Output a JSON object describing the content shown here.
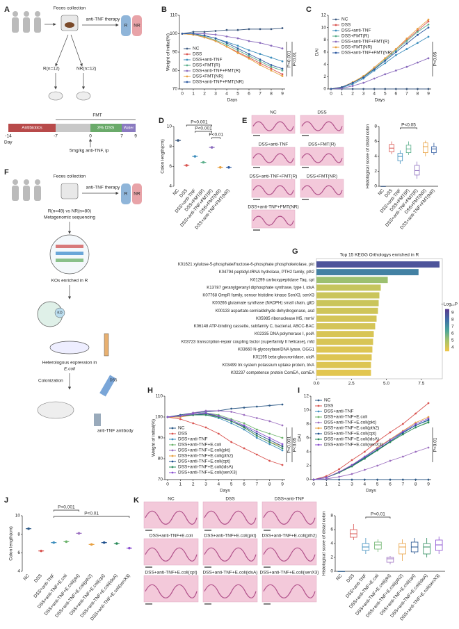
{
  "panel_a": {
    "panel": "A",
    "feces": "Feces collection",
    "therapy": "anti-TNF therapy",
    "r": "R",
    "nr": "NR",
    "r_n": "R(n=12)",
    "nr_n": "NR(n=12)",
    "fmt": "FMT",
    "antibiotics": "Antibiotics",
    "dss": "3% DSS",
    "water": "Water",
    "days": [
      "-14",
      "-7",
      "0",
      "7",
      "9"
    ],
    "day": "Day",
    "dose": "5mg/kg anti-TNF, ip"
  },
  "panel_f": {
    "panel": "F",
    "feces": "Feces collection",
    "therapy": "anti-TNF therapy",
    "r": "R",
    "nr": "NR",
    "cohort": "R(n=49) vs NR(n=80)",
    "sequencing": "Metagenomic sequencing",
    "kos": "KOs enriched in R",
    "ko": "KO",
    "expression": "Heterologous expression in",
    "ecoli": "E.coli",
    "colonization": "Colonization",
    "dss": "DSS",
    "antibody": "anti-TNF antibody"
  },
  "histology_e": {
    "panel": "E",
    "labels": [
      "NC",
      "DSS",
      "DSS+anti-TNF",
      "DSS+FMT(R)",
      "DSS+anti-TNF+FMT(R)",
      "DSS+FMT(NR)",
      "DSS+anti-TNF+FMT(NR)"
    ]
  },
  "histology_k": {
    "panel": "K",
    "labels": [
      "NC",
      "DSS",
      "DSS+anti-TNF",
      "DSS+anti-TNF+E.coli",
      "DSS+anti-TNF+E.coli(pkt)",
      "DSS+anti-TNF+E.coli(pth2)",
      "DSS+anti-TNF+E.coli(cpt)",
      "DSS+anti-TNF+E.coli(idsA)",
      "DSS+anti-TNF+E.coli(senX3)"
    ]
  },
  "chart_data": [
    {
      "type": "line",
      "panel": "B",
      "y_label": "Weight of initial(%)",
      "x_label": "Days",
      "x": [
        0,
        1,
        2,
        3,
        4,
        5,
        6,
        7,
        8,
        9
      ],
      "xlim": [
        0,
        9
      ],
      "xticks": [
        0,
        1,
        2,
        3,
        4,
        5,
        6,
        7,
        8,
        9
      ],
      "ylim": [
        70,
        110
      ],
      "yticks": [
        70,
        80,
        90,
        100,
        110
      ],
      "legend": "lower left",
      "annotations": [
        "P<0.001",
        "P<0.01"
      ],
      "series": [
        {
          "name": "NC",
          "color": "#3d5a80",
          "values": [
            100,
            101,
            101,
            101.5,
            102,
            102,
            102.5,
            102.5,
            102.5,
            103
          ]
        },
        {
          "name": "DSS",
          "color": "#d9534f",
          "values": [
            100,
            99.5,
            98,
            96,
            93,
            90,
            87,
            84,
            81,
            78
          ]
        },
        {
          "name": "DSS+anti-TNF",
          "color": "#3c8dbc",
          "values": [
            100,
            100,
            99,
            97.5,
            95.5,
            93.5,
            91,
            89,
            87,
            85
          ]
        },
        {
          "name": "DSS+FMT(R)",
          "color": "#5aae8a",
          "values": [
            100,
            99.5,
            98.5,
            96.5,
            94,
            91,
            88,
            85,
            82,
            80
          ]
        },
        {
          "name": "DSS+anti-TNF+FMT(R)",
          "color": "#8a6bbd",
          "values": [
            100,
            100,
            100,
            99.5,
            98.5,
            97.5,
            96,
            95,
            93.5,
            92
          ]
        },
        {
          "name": "DSS+FMT(NR)",
          "color": "#e8a040",
          "values": [
            100,
            99.5,
            98,
            96,
            93,
            89.5,
            86.5,
            83,
            80,
            77
          ]
        },
        {
          "name": "DSS+anti-TNF+FMT(NR)",
          "color": "#2e5aa0",
          "values": [
            100,
            100,
            99,
            97.5,
            95,
            92,
            89,
            86,
            83,
            81
          ]
        }
      ]
    },
    {
      "type": "line",
      "panel": "C",
      "y_label": "DAI",
      "x_label": "Days",
      "x": [
        0,
        1,
        2,
        3,
        4,
        5,
        6,
        7,
        8,
        9
      ],
      "xlim": [
        0,
        9
      ],
      "xticks": [
        0,
        1,
        2,
        3,
        4,
        5,
        6,
        7,
        8,
        9
      ],
      "ylim": [
        0,
        12
      ],
      "yticks": [
        0,
        2,
        4,
        6,
        8,
        10,
        12
      ],
      "legend": "upper left",
      "annotations": [
        "P<0.05"
      ],
      "series": [
        {
          "name": "NC",
          "color": "#3d5a80",
          "values": [
            0,
            0,
            0,
            0,
            0,
            0,
            0,
            0,
            0,
            0
          ]
        },
        {
          "name": "DSS",
          "color": "#d9534f",
          "values": [
            0,
            0.3,
            1,
            2,
            3.5,
            5,
            6.5,
            8,
            9.5,
            11
          ]
        },
        {
          "name": "DSS+anti-TNF",
          "color": "#3c8dbc",
          "values": [
            0,
            0.2,
            0.8,
            1.7,
            3,
            4.2,
            5.5,
            6.5,
            7.5,
            8.5
          ]
        },
        {
          "name": "DSS+FMT(R)",
          "color": "#5aae8a",
          "values": [
            0,
            0.3,
            1,
            2,
            3.3,
            4.8,
            6.3,
            7.8,
            9.3,
            10.5
          ]
        },
        {
          "name": "DSS+anti-TNF+FMT(R)",
          "color": "#8a6bbd",
          "values": [
            0,
            0.1,
            0.5,
            1,
            1.7,
            2.4,
            3,
            3.6,
            4.3,
            5
          ]
        },
        {
          "name": "DSS+FMT(NR)",
          "color": "#e8a040",
          "values": [
            0,
            0.3,
            1.1,
            2.1,
            3.5,
            5,
            6.5,
            8.2,
            9.8,
            11.3
          ]
        },
        {
          "name": "DSS+anti-TNF+FMT(NR)",
          "color": "#2e5aa0",
          "values": [
            0,
            0.3,
            1,
            1.9,
            3.2,
            4.6,
            6,
            7.4,
            8.8,
            10
          ]
        }
      ]
    },
    {
      "type": "dot",
      "panel": "D",
      "y_label": "Colon length(cm)",
      "ylim": [
        4,
        10
      ],
      "yticks": [
        4,
        6,
        8,
        10
      ],
      "categories": [
        "NC",
        "DSS",
        "DSS+anti-TNF",
        "DSS+FMT(R)",
        "DSS+anti-TNF+FMT(R)",
        "DSS+FMT(NR)",
        "DSS+anti-TNF+FMT(NR)"
      ],
      "values": [
        8.6,
        6.1,
        7.0,
        6.4,
        7.9,
        5.9,
        5.9
      ],
      "colors": [
        "#3d5a80",
        "#d9534f",
        "#3c8dbc",
        "#5aae8a",
        "#8a6bbd",
        "#e8a040",
        "#2e5aa0"
      ],
      "annotations": [
        "P<0.001",
        "P<0.001",
        "P<0.01"
      ]
    },
    {
      "type": "box",
      "panel": "",
      "y_label": "Histological score of distal colon",
      "ylim": [
        0,
        8
      ],
      "yticks": [
        0,
        2,
        4,
        6,
        8
      ],
      "categories": [
        "NC",
        "DSS",
        "DSS+anti-TNF",
        "DSS+FMT(R)",
        "DSS+anti-TNF+FMT(R)",
        "DSS+FMT(NR)",
        "DSS+anti-TNF+FMT(NR)"
      ],
      "min": [
        0,
        4.3,
        3,
        4.2,
        1,
        4,
        4.2
      ],
      "q1": [
        0,
        4.6,
        3.4,
        4.5,
        1.5,
        4.5,
        4.5
      ],
      "median": [
        0,
        5.1,
        4,
        5,
        2.1,
        5.3,
        5
      ],
      "q3": [
        0,
        5.6,
        4.4,
        5.5,
        2.8,
        5.8,
        5.3
      ],
      "max": [
        0,
        6,
        4.8,
        6,
        3.3,
        6.1,
        5.8
      ],
      "colors": [
        "#3d5a80",
        "#d9534f",
        "#3c8dbc",
        "#5aae8a",
        "#8a6bbd",
        "#e8a040",
        "#2e5aa0"
      ],
      "annotations": [
        "P<0.05"
      ]
    },
    {
      "type": "hbar",
      "panel": "G",
      "title": "Top 15 KEGG Orthologys enriched in R",
      "categories": [
        "K01621 xylulose-5-phosphate/fructose-6-phosphate phosphoketolase, pkt",
        "K04794 peptidyl-tRNA hydrolase, PTH2 family, pth2",
        "K01299 carboxypeptidase Taq, cpt",
        "K13787 geranylgeranyl diphosphate synthase, type I, idsA",
        "K07768 OmpR family, sensor histidine kinase SenX3, senX3",
        "K00266 glutamate synthase (NADPH) small chain, gltD",
        "K00133 aspartate-semialdehyde dehydrogenase, asd",
        "K05985 ribonuclease M5, rnmV",
        "K06148 ATP-binding cassette, subfamily C, bacterial, ABCC-BAC",
        "K02335 DNA polymerase I, polA",
        "K03723 transcription-repair coupling factor (superfamily II helicase), mfd",
        "K03660 N-glycosylase/DNA lyase, OGG1",
        "K01195 beta-glucuronidase, uidA",
        "K03499 trk system potassium uptake protein, trkA",
        "K02237 competence protein ComEA, comEA"
      ],
      "values": [
        8.8,
        7.3,
        5.1,
        4.6,
        4.5,
        4.45,
        4.4,
        4.3,
        4.2,
        4.1,
        4.05,
        4.0,
        3.95,
        3.9,
        3.9
      ],
      "pvalues": [
        8.8,
        7.5,
        5.2,
        4.4,
        4.3,
        4.3,
        4.2,
        4.1,
        4.1,
        4.0,
        4.0,
        3.9,
        3.9,
        3.9,
        3.8
      ],
      "xlim": [
        0,
        9
      ],
      "xticks": [
        {
          "value": 0,
          "label": "0.0"
        },
        {
          "value": 2.5,
          "label": "2.5"
        },
        {
          "value": 5,
          "label": "5.0"
        },
        {
          "value": 7.5,
          "label": "7.5"
        }
      ],
      "color_label": "−Log₁₀P",
      "clim": [
        3.5,
        9.5
      ],
      "cticks": [
        4,
        5,
        6,
        7,
        8,
        9
      ],
      "colorscale": [
        "#f0c64a",
        "#a9c46a",
        "#4aa59a",
        "#3f6fa8",
        "#5b3d8f"
      ]
    },
    {
      "type": "line",
      "panel": "H",
      "y_label": "Weight of initial(%)",
      "x_label": "Days",
      "x": [
        0,
        1,
        2,
        3,
        4,
        5,
        6,
        7,
        8,
        9
      ],
      "xlim": [
        0,
        9
      ],
      "xticks": [
        0,
        1,
        2,
        3,
        4,
        5,
        6,
        7,
        8,
        9
      ],
      "ylim": [
        70,
        110
      ],
      "yticks": [
        70,
        80,
        90,
        100,
        110
      ],
      "legend": "lower left",
      "annotations": [
        "P<0.001",
        "P<0.05"
      ],
      "series": [
        {
          "name": "NC",
          "color": "#2e5a87",
          "values": [
            100,
            101,
            102,
            102.5,
            103,
            104,
            104.5,
            105,
            105.5,
            106
          ]
        },
        {
          "name": "DSS",
          "color": "#d9534f",
          "values": [
            100,
            99,
            97,
            95,
            92,
            88,
            85,
            82,
            79,
            77
          ]
        },
        {
          "name": "DSS+anti-TNF",
          "color": "#3c8dbc",
          "values": [
            100,
            100.5,
            101,
            101,
            99.5,
            97,
            94,
            90,
            87,
            84
          ]
        },
        {
          "name": "DSS+anti-TNF+E.coli",
          "color": "#6cb36c",
          "values": [
            100,
            100.5,
            101.5,
            102,
            101,
            99,
            97,
            94,
            92,
            90
          ]
        },
        {
          "name": "DSS+anti-TNF+E.coli(pkt)",
          "color": "#9c6fc0",
          "values": [
            100,
            100.5,
            102,
            103,
            103,
            102.5,
            101,
            99.5,
            98,
            96
          ]
        },
        {
          "name": "DSS+anti-TNF+E.coli(pth2)",
          "color": "#e8a040",
          "values": [
            100,
            100,
            101,
            101.5,
            100,
            98,
            95,
            91,
            88,
            86
          ]
        },
        {
          "name": "DSS+anti-TNF+E.coli(cpt)",
          "color": "#1e4f8c",
          "values": [
            100,
            100.5,
            101,
            101.5,
            100.5,
            98,
            95.5,
            92,
            89,
            86
          ]
        },
        {
          "name": "DSS+anti-TNF+E.coli(idsA)",
          "color": "#2a8a5a",
          "values": [
            100,
            100.5,
            101,
            101,
            100,
            98,
            95,
            91,
            88,
            85
          ]
        },
        {
          "name": "DSS+anti-TNF+E.coli(senX3)",
          "color": "#8a4fd0",
          "values": [
            100,
            100.5,
            101.5,
            102,
            100.5,
            98.5,
            96,
            93,
            90,
            87
          ]
        }
      ]
    },
    {
      "type": "line",
      "panel": "I",
      "y_label": "DAI",
      "x_label": "Days",
      "x": [
        0,
        1,
        2,
        3,
        4,
        5,
        6,
        7,
        8,
        9
      ],
      "xlim": [
        0,
        9
      ],
      "xticks": [
        0,
        1,
        2,
        3,
        4,
        5,
        6,
        7,
        8,
        9
      ],
      "ylim": [
        0,
        12
      ],
      "yticks": [
        0,
        2,
        4,
        6,
        8,
        10,
        12
      ],
      "legend": "upper left",
      "annotations": [
        "P<0.01"
      ],
      "series": [
        {
          "name": "NC",
          "color": "#2e5a87",
          "values": [
            0,
            0,
            0,
            0,
            0,
            0,
            0,
            0,
            0,
            0
          ]
        },
        {
          "name": "DSS",
          "color": "#d9534f",
          "values": [
            0,
            0.5,
            1.5,
            2.8,
            4,
            5.5,
            6.8,
            8,
            9.5,
            11
          ]
        },
        {
          "name": "DSS+anti-TNF",
          "color": "#3c8dbc",
          "values": [
            0,
            0.3,
            1,
            2,
            3.2,
            4.5,
            5.7,
            6.8,
            7.8,
            8.5
          ]
        },
        {
          "name": "DSS+anti-TNF+E.coli",
          "color": "#6cb36c",
          "values": [
            0,
            0.3,
            1,
            1.9,
            3,
            4.2,
            5.4,
            6.5,
            7.5,
            8.3
          ]
        },
        {
          "name": "DSS+anti-TNF+E.coli(pkt)",
          "color": "#9c6fc0",
          "values": [
            0,
            0.1,
            0.4,
            0.8,
            1.4,
            2,
            2.7,
            3.3,
            4,
            4.6
          ]
        },
        {
          "name": "DSS+anti-TNF+E.coli(pth2)",
          "color": "#e8a040",
          "values": [
            0,
            0.3,
            1.1,
            2.1,
            3.3,
            4.6,
            5.8,
            7,
            8.2,
            9
          ]
        },
        {
          "name": "DSS+anti-TNF+E.coli(cpt)",
          "color": "#1e4f8c",
          "values": [
            0,
            0.3,
            1,
            2,
            3.1,
            4.3,
            5.5,
            6.7,
            7.8,
            8.6
          ]
        },
        {
          "name": "DSS+anti-TNF+E.coli(idsA)",
          "color": "#2a8a5a",
          "values": [
            0,
            0.3,
            1,
            1.9,
            3,
            4.2,
            5.4,
            6.5,
            7.5,
            8.2
          ]
        },
        {
          "name": "DSS+anti-TNF+E.coli(senX3)",
          "color": "#8a4fd0",
          "values": [
            0,
            0.3,
            1.1,
            2.1,
            3.3,
            4.5,
            5.7,
            6.9,
            8,
            8.8
          ]
        }
      ]
    },
    {
      "type": "dot",
      "panel": "J",
      "y_label": "Colon length(cm)",
      "ylim": [
        4,
        10
      ],
      "yticks": [
        4,
        6,
        8,
        10
      ],
      "categories": [
        "NC",
        "DSS",
        "DSS+anti-TNF",
        "DSS+anti-TNF+E.coli",
        "DSS+anti-TNF+E.coli(pkt)",
        "DSS+anti-TNF+E.coli(pth2)",
        "DSS+anti-TNF+E.coli(cpt)",
        "DSS+anti-TNF+E.coli(idsA)",
        "DSS+anti-TNF+E.coli(senX3)"
      ],
      "values": [
        8.6,
        6.2,
        7.1,
        7.2,
        8.1,
        6.9,
        7.1,
        7.0,
        6.5
      ],
      "colors": [
        "#2e5a87",
        "#d9534f",
        "#3c8dbc",
        "#6cb36c",
        "#9c6fc0",
        "#e8a040",
        "#1e4f8c",
        "#2a8a5a",
        "#8a4fd0"
      ],
      "annotations": [
        "P<0.001",
        "P<0.01"
      ]
    },
    {
      "type": "box",
      "panel": "",
      "y_label": "Histological score of distal colon",
      "ylim": [
        0,
        8
      ],
      "yticks": [
        0,
        2,
        4,
        6,
        8
      ],
      "categories": [
        "NC",
        "DSS",
        "DSS+anti-TNF",
        "DSS+anti-TNF+E.coli",
        "DSS+anti-TNF+E.coli(pkt)",
        "DSS+anti-TNF+E.coli(pth2)",
        "DSS+anti-TNF+E.coli(cpt)",
        "DSS+anti-TNF+E.coli(idsA)",
        "DSS+anti-TNF+E.coli(senX3)"
      ],
      "min": [
        0,
        4.5,
        2.5,
        2.8,
        1,
        1.5,
        2.5,
        2,
        2.5
      ],
      "q1": [
        0,
        4.9,
        3,
        3.2,
        1.3,
        2.5,
        2.8,
        2.5,
        3
      ],
      "median": [
        0,
        5.4,
        3.5,
        3.8,
        1.8,
        3.5,
        3.5,
        3.5,
        3.8
      ],
      "q3": [
        0,
        6,
        4,
        4.2,
        2,
        4,
        4.2,
        4,
        4.5
      ],
      "max": [
        0,
        6.8,
        4.8,
        4.6,
        2.2,
        4.6,
        4.8,
        4.8,
        5
      ],
      "colors": [
        "#2e5a87",
        "#d9534f",
        "#3c8dbc",
        "#6cb36c",
        "#9c6fc0",
        "#e8a040",
        "#1e4f8c",
        "#2a8a5a",
        "#8a4fd0"
      ],
      "annotations": [
        "P<0.01"
      ]
    }
  ]
}
